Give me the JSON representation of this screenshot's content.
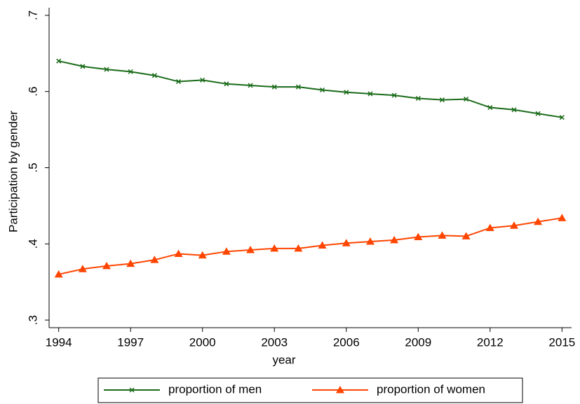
{
  "chart_data": {
    "type": "line",
    "x_label": "year",
    "y_label": "Participation by gender",
    "x": [
      1994,
      1995,
      1996,
      1997,
      1998,
      1999,
      2000,
      2001,
      2002,
      2003,
      2004,
      2005,
      2006,
      2007,
      2008,
      2009,
      2010,
      2011,
      2012,
      2013,
      2014,
      2015
    ],
    "series": [
      {
        "name": "proportion of men",
        "color": "#1a6b1a",
        "marker": "x",
        "values": [
          0.64,
          0.633,
          0.629,
          0.626,
          0.621,
          0.613,
          0.615,
          0.61,
          0.608,
          0.606,
          0.606,
          0.602,
          0.599,
          0.597,
          0.595,
          0.591,
          0.589,
          0.59,
          0.579,
          0.576,
          0.571,
          0.566
        ]
      },
      {
        "name": "proportion of women",
        "color": "#ff4500",
        "marker": "triangle",
        "values": [
          0.36,
          0.367,
          0.371,
          0.374,
          0.379,
          0.387,
          0.385,
          0.39,
          0.392,
          0.394,
          0.394,
          0.398,
          0.401,
          0.403,
          0.405,
          0.409,
          0.411,
          0.41,
          0.421,
          0.424,
          0.429,
          0.434
        ]
      }
    ],
    "xlim": [
      1993.6,
      2015.4
    ],
    "xticks": [
      1994,
      1997,
      2000,
      2003,
      2006,
      2009,
      2012,
      2015
    ],
    "ylim": [
      0.29,
      0.71
    ],
    "yticks": [
      {
        "value": 0.3,
        "label": ".3"
      },
      {
        "value": 0.4,
        "label": ".4"
      },
      {
        "value": 0.5,
        "label": ".5"
      },
      {
        "value": 0.6,
        "label": ".6"
      },
      {
        "value": 0.7,
        "label": ".7"
      }
    ],
    "grid": false,
    "legend": "bottom"
  }
}
